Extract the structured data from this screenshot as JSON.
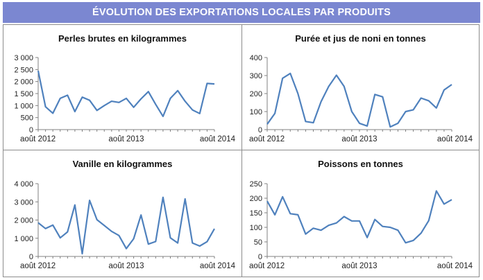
{
  "header": {
    "title": "ÉVOLUTION DES EXPORTATIONS LOCALES PAR PRODUITS"
  },
  "colors": {
    "banner": "#7b87d1",
    "series_line": "#4f81bd",
    "axis": "#808080",
    "frame": "#8c8c8c"
  },
  "chart_data": [
    {
      "type": "line",
      "title": "Perles brutes en kilogrammes",
      "xlabel": "",
      "ylabel": "",
      "x_tick_labels": [
        "août 2012",
        "août 2013",
        "août 2014"
      ],
      "y_tick_labels": [
        "0",
        "500",
        "1 000",
        "1 500",
        "2 000",
        "2 500",
        "3 000"
      ],
      "yticks": [
        0,
        500,
        1000,
        1500,
        2000,
        2500,
        3000
      ],
      "ylim": [
        0,
        3000
      ],
      "grid": false,
      "legend": "none",
      "values": [
        2450,
        950,
        680,
        1300,
        1430,
        750,
        1350,
        1220,
        800,
        1000,
        1180,
        1130,
        1300,
        930,
        1280,
        1580,
        1050,
        550,
        1300,
        1620,
        1180,
        820,
        670,
        1920,
        1900
      ]
    },
    {
      "type": "line",
      "title": "Purée et jus de noni en tonnes",
      "xlabel": "",
      "ylabel": "",
      "x_tick_labels": [
        "août 2012",
        "août 2013",
        "août 2014"
      ],
      "y_tick_labels": [
        "0",
        "100",
        "200",
        "300",
        "400"
      ],
      "yticks": [
        0,
        100,
        200,
        300,
        400
      ],
      "ylim": [
        0,
        400
      ],
      "grid": false,
      "legend": "none",
      "values": [
        30,
        90,
        285,
        312,
        200,
        45,
        38,
        155,
        240,
        302,
        240,
        100,
        35,
        20,
        195,
        182,
        15,
        35,
        100,
        110,
        175,
        160,
        120,
        220,
        250
      ]
    },
    {
      "type": "line",
      "title": "Vanille en kilogrammes",
      "xlabel": "",
      "ylabel": "",
      "x_tick_labels": [
        "août 2012",
        "août 2013",
        "août 2014"
      ],
      "y_tick_labels": [
        "0",
        "1 000",
        "2 000",
        "3 000",
        "4 000"
      ],
      "yticks": [
        0,
        1000,
        2000,
        3000,
        4000
      ],
      "ylim": [
        0,
        4000
      ],
      "grid": false,
      "legend": "none",
      "values": [
        1850,
        1530,
        1720,
        1020,
        1350,
        2830,
        150,
        3080,
        2020,
        1700,
        1380,
        1150,
        430,
        970,
        2280,
        680,
        820,
        3250,
        1020,
        740,
        3160,
        740,
        570,
        810,
        1520
      ]
    },
    {
      "type": "line",
      "title": "Poissons en tonnes",
      "xlabel": "",
      "ylabel": "",
      "x_tick_labels": [
        "août 2012",
        "août 2013",
        "août 2014"
      ],
      "y_tick_labels": [
        "0",
        "50",
        "100",
        "150",
        "200",
        "250"
      ],
      "yticks": [
        0,
        50,
        100,
        150,
        200,
        250
      ],
      "ylim": [
        0,
        250
      ],
      "grid": false,
      "legend": "none",
      "values": [
        190,
        143,
        205,
        147,
        143,
        77,
        97,
        90,
        107,
        115,
        137,
        122,
        122,
        65,
        127,
        103,
        100,
        90,
        47,
        55,
        80,
        123,
        225,
        180,
        195
      ]
    }
  ]
}
